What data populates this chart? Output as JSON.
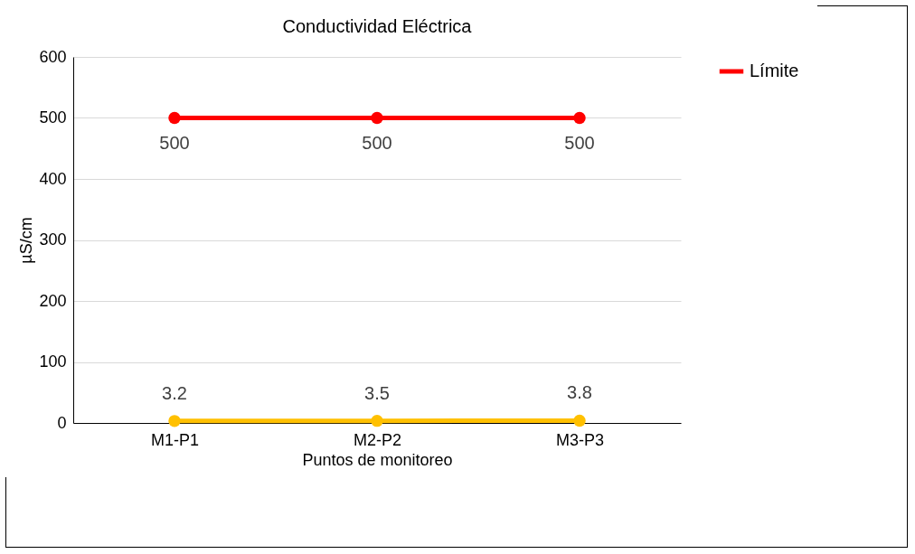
{
  "chart_data": {
    "type": "line",
    "title": "Conductividad Eléctrica",
    "xlabel": "Puntos de monitoreo",
    "ylabel": "µS/cm",
    "categories": [
      "M1-P1",
      "M2-P2",
      "M3-P3"
    ],
    "series": [
      {
        "name": "Límite",
        "color": "#ff0000",
        "values": [
          500,
          500,
          500
        ]
      },
      {
        "color": "#ffc000",
        "values": [
          3.2,
          3.5,
          3.8
        ]
      }
    ],
    "ylim": [
      0,
      600
    ],
    "yticks": [
      0,
      100,
      200,
      300,
      400,
      500,
      600
    ],
    "grid": "y",
    "legend": "right",
    "marker": "circle",
    "line_style": "solid",
    "data_labels": true
  }
}
